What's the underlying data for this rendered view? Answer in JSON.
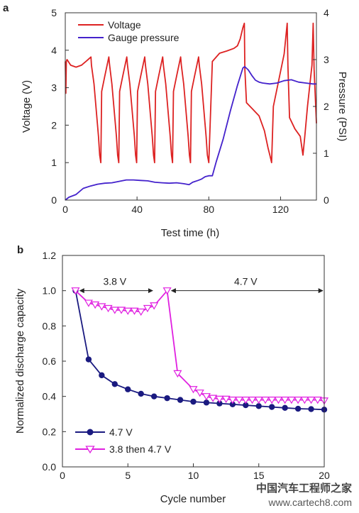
{
  "watermark": {
    "line1": "中国汽车工程师之家",
    "line2": "www.cartech8.com"
  },
  "chart_data": [
    {
      "panel": "a",
      "type": "line",
      "xlabel": "Test time (h)",
      "ylabel": "Voltage (V)",
      "y2label": "Pressure (PSI)",
      "xlim": [
        0,
        140
      ],
      "ylim": [
        0,
        5
      ],
      "y2lim": [
        0,
        4
      ],
      "xticks": [
        0,
        40,
        80,
        120
      ],
      "yticks": [
        0,
        1,
        2,
        3,
        4,
        5
      ],
      "y2ticks": [
        0,
        1,
        2,
        3,
        4
      ],
      "legend_position": "top-left",
      "series": [
        {
          "name": "Voltage",
          "axis": "left",
          "color": "#dd2222",
          "x": [
            0,
            0.3,
            0.6,
            1,
            3,
            6,
            9,
            12,
            14.3,
            14.6,
            16,
            18.5,
            19.2,
            19.8,
            20.3,
            22,
            24.3,
            24.7,
            26,
            28.5,
            29.2,
            29.8,
            30.3,
            32,
            34.3,
            34.7,
            36,
            38.5,
            39.2,
            39.8,
            40.3,
            42,
            44.3,
            44.7,
            46,
            48.5,
            49.2,
            49.8,
            50.3,
            52,
            54.3,
            54.7,
            56,
            58.5,
            59.2,
            59.8,
            60.3,
            62,
            64.3,
            64.7,
            66,
            68.5,
            69.2,
            69.8,
            70.3,
            72,
            74.3,
            74.7,
            76,
            78.5,
            79.2,
            80,
            82,
            86,
            90,
            94,
            96,
            97.5,
            99,
            99.8,
            100.1,
            101,
            104,
            108,
            111,
            113,
            114.3,
            115,
            116,
            119,
            122,
            123.7,
            124.1,
            125,
            128,
            131,
            132.5,
            133.5,
            135,
            137.5,
            138.2,
            138.7,
            140
          ],
          "values": [
            3.7,
            2.85,
            3.7,
            3.75,
            3.6,
            3.55,
            3.6,
            3.72,
            3.82,
            3.6,
            3.1,
            1.7,
            1.2,
            1.0,
            2.9,
            3.3,
            3.82,
            3.6,
            3.1,
            1.7,
            1.2,
            1.0,
            2.9,
            3.3,
            3.82,
            3.6,
            3.1,
            1.7,
            1.2,
            1.0,
            2.9,
            3.3,
            3.82,
            3.6,
            3.1,
            1.7,
            1.2,
            1.0,
            2.9,
            3.3,
            3.82,
            3.6,
            3.1,
            1.7,
            1.2,
            1.0,
            2.9,
            3.3,
            3.82,
            3.6,
            3.1,
            1.7,
            1.2,
            1.0,
            2.9,
            3.3,
            3.82,
            3.6,
            3.1,
            1.7,
            1.2,
            1.0,
            3.7,
            3.92,
            3.98,
            4.05,
            4.12,
            4.3,
            4.6,
            4.72,
            3.5,
            2.6,
            2.45,
            2.25,
            1.85,
            1.4,
            1.15,
            1.0,
            2.5,
            3.2,
            3.9,
            4.72,
            3.6,
            2.2,
            1.9,
            1.7,
            1.2,
            1.7,
            2.5,
            3.6,
            4.72,
            3.5,
            2.05
          ]
        },
        {
          "name": "Gauge pressure",
          "axis": "right",
          "color": "#4422cc",
          "x": [
            0,
            2,
            6,
            10,
            14,
            18,
            22,
            26,
            30,
            34,
            38,
            42,
            46,
            50,
            54,
            58,
            62,
            66,
            69,
            71,
            74,
            76,
            78,
            80,
            82,
            84,
            88,
            92,
            96,
            99,
            100,
            102,
            104,
            106,
            108,
            110,
            114,
            118,
            122,
            126,
            130,
            134,
            138,
            140
          ],
          "values": [
            0.0,
            0.06,
            0.12,
            0.25,
            0.3,
            0.34,
            0.36,
            0.37,
            0.4,
            0.43,
            0.43,
            0.42,
            0.41,
            0.38,
            0.37,
            0.36,
            0.37,
            0.35,
            0.33,
            0.38,
            0.42,
            0.45,
            0.5,
            0.52,
            0.52,
            0.8,
            1.3,
            1.9,
            2.45,
            2.82,
            2.85,
            2.78,
            2.66,
            2.56,
            2.52,
            2.5,
            2.48,
            2.5,
            2.55,
            2.57,
            2.52,
            2.5,
            2.48,
            2.48
          ]
        }
      ]
    },
    {
      "panel": "b",
      "type": "line",
      "xlabel": "Cycle number",
      "ylabel": "Normalized discharge capacity",
      "xlim": [
        0,
        20
      ],
      "ylim": [
        0,
        1.2
      ],
      "xticks": [
        0,
        5,
        10,
        15,
        20
      ],
      "yticks": [
        0.0,
        0.2,
        0.4,
        0.6,
        0.8,
        1.0,
        1.2
      ],
      "legend_position": "bottom-left",
      "annotations": [
        {
          "text": "3.8 V",
          "from": 1,
          "to": 7,
          "y": 1.0
        },
        {
          "text": "4.7 V",
          "from": 8,
          "to": 20,
          "y": 1.0
        }
      ],
      "series": [
        {
          "name": "4.7 V",
          "color": "#1a1a80",
          "marker": "circle",
          "x": [
            1,
            2,
            3,
            4,
            5,
            6,
            7,
            8,
            9,
            10,
            11,
            12,
            13,
            14,
            15,
            16,
            17,
            18,
            19,
            20
          ],
          "values": [
            1.0,
            0.61,
            0.52,
            0.47,
            0.44,
            0.415,
            0.4,
            0.39,
            0.38,
            0.37,
            0.365,
            0.36,
            0.355,
            0.35,
            0.345,
            0.34,
            0.335,
            0.33,
            0.328,
            0.325
          ]
        },
        {
          "name": "3.8 then 4.7 V",
          "color": "#e020e0",
          "marker": "triangle-down",
          "x": [
            1,
            2,
            2.5,
            3,
            3.5,
            4,
            4.5,
            5,
            5.5,
            6,
            6.5,
            7,
            8,
            8.8,
            10,
            10.5,
            11,
            11.5,
            12,
            12.5,
            13,
            13.5,
            14,
            14.5,
            15,
            15.5,
            16,
            16.5,
            17,
            17.5,
            18,
            18.5,
            19,
            19.5,
            20
          ],
          "values": [
            1.0,
            0.93,
            0.92,
            0.91,
            0.9,
            0.89,
            0.89,
            0.885,
            0.885,
            0.88,
            0.9,
            0.915,
            1.0,
            0.53,
            0.44,
            0.42,
            0.4,
            0.39,
            0.385,
            0.385,
            0.38,
            0.38,
            0.38,
            0.38,
            0.38,
            0.38,
            0.38,
            0.38,
            0.38,
            0.38,
            0.38,
            0.38,
            0.38,
            0.38,
            0.375
          ]
        }
      ]
    }
  ]
}
